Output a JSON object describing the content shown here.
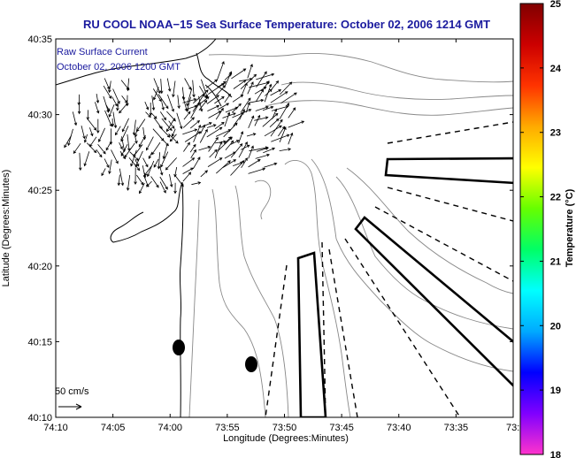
{
  "header": {
    "title": "RU COOL  NOAA−15  Sea Surface Temperature:  October 02, 2006 1214 GMT"
  },
  "overlay": {
    "line1": "Raw Surface Current",
    "line2": "October 02, 2006 1200 GMT",
    "scale_label": "50 cm/s"
  },
  "axes": {
    "xlabel": "Longitude (Degrees:Minutes)",
    "ylabel": "Latitude (Degrees:Minutes)",
    "xticks": [
      "74:10",
      "74:05",
      "74:00",
      "73:55",
      "73:50",
      "73:45",
      "73:40",
      "73:35",
      "73:3"
    ],
    "yticks": [
      "40:35",
      "40:30",
      "40:25",
      "40:20",
      "40:15",
      "40:10"
    ]
  },
  "colorbar": {
    "label": "Temperature (°C)",
    "ticks": [
      "25",
      "24",
      "23",
      "22",
      "21",
      "20",
      "19",
      "18"
    ],
    "min": 18,
    "max": 25,
    "stops": [
      "#ff33cc",
      "#8000ff",
      "#0000ff",
      "#00aaff",
      "#00ffff",
      "#00ff66",
      "#66ff00",
      "#ffff00",
      "#ffaa00",
      "#ff3300",
      "#cc0000",
      "#800000"
    ]
  },
  "colors": {
    "title": "#1a1a9e",
    "contour": "#888888",
    "frame": "#000000"
  }
}
